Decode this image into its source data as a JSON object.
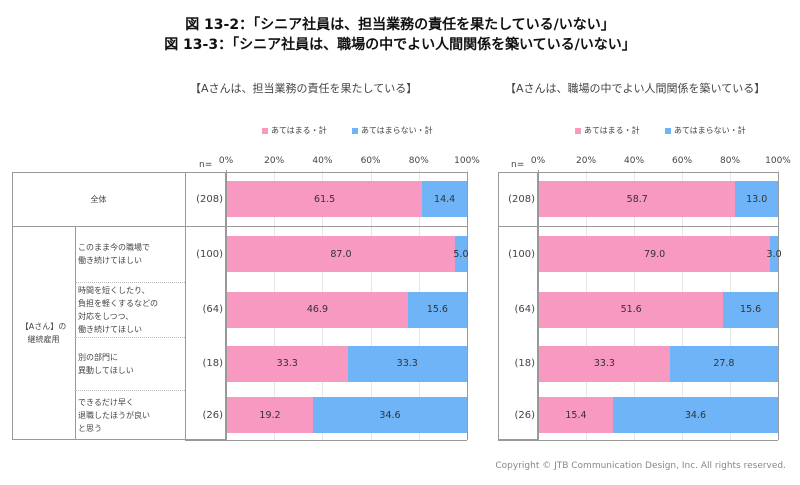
{
  "title_lines": [
    "図 13-2：「シニア社員は、担当業務の責任を果たしている/いない」",
    "図 13-3：「シニア社員は、職場の中でよい人間関係を築いている/いない」"
  ],
  "row_header": {
    "n_label": "n=",
    "total": "全体",
    "group": "【Aさん】の\n継続雇用",
    "rows": [
      "このまま今の職場で\n働き続けてほしい",
      "時間を短くしたり、\n負担を軽くするなどの\n対応をしつつ、\n働き続けてほしい",
      "別の部門に\n異動してほしい",
      "できるだけ早く\n退職したほうが良い\nと思う"
    ]
  },
  "colors": {
    "pink": "#f799c1",
    "blue": "#6fb4f7"
  },
  "chart_data": [
    {
      "type": "bar",
      "stacked": true,
      "orientation": "horizontal",
      "title": "【Aさんは、担当業務の責任を果たしている】",
      "categories": [
        "全体",
        "このまま今の職場で働き続けてほしい",
        "時間を短くしたり、負担を軽くするなどの対応をしつつ、働き続けてほしい",
        "別の部門に異動してほしい",
        "できるだけ早く退職したほうが良いと思う"
      ],
      "n": [
        "(208)",
        "(100)",
        "(64)",
        "(18)",
        "(26)"
      ],
      "series": [
        {
          "name": "あてはまる・計",
          "values": [
            61.5,
            87.0,
            46.9,
            33.3,
            19.2
          ]
        },
        {
          "name": "あてはまらない・計",
          "values": [
            14.4,
            5.0,
            15.6,
            33.3,
            34.6
          ]
        }
      ],
      "xticks": [
        "0%",
        "20%",
        "40%",
        "60%",
        "80%",
        "100%"
      ],
      "xlim": [
        0,
        100
      ],
      "legend": "top"
    },
    {
      "type": "bar",
      "stacked": true,
      "orientation": "horizontal",
      "title": "【Aさんは、職場の中でよい人間関係を築いている】",
      "categories": [
        "全体",
        "このまま今の職場で働き続けてほしい",
        "時間を短くしたり、負担を軽くするなどの対応をしつつ、働き続けてほしい",
        "別の部門に異動してほしい",
        "できるだけ早く退職したほうが良いと思う"
      ],
      "n": [
        "(208)",
        "(100)",
        "(64)",
        "(18)",
        "(26)"
      ],
      "series": [
        {
          "name": "あてはまる・計",
          "values": [
            58.7,
            79.0,
            51.6,
            33.3,
            15.4
          ]
        },
        {
          "name": "あてはまらない・計",
          "values": [
            13.0,
            3.0,
            15.6,
            27.8,
            34.6
          ]
        }
      ],
      "xticks": [
        "0%",
        "20%",
        "40%",
        "60%",
        "80%",
        "100%"
      ],
      "xlim": [
        0,
        100
      ],
      "legend": "top"
    }
  ],
  "copyright": "Copyright © JTB Communication Design, Inc. All rights reserved."
}
